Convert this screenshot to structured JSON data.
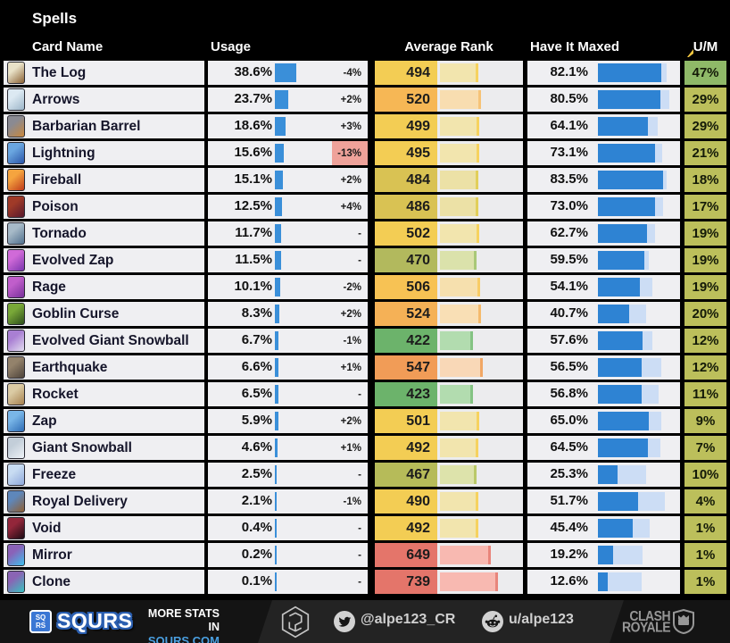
{
  "header": {
    "title": "Spells"
  },
  "chart_data": {
    "type": "table",
    "title": "Spells",
    "columns": [
      "Card Name",
      "Usage",
      "Average Rank",
      "Have It Maxed",
      "U/M"
    ],
    "legend": "Usage bar scale: 100% = 62px; rank bar scale: rank x 0.088px; maxed bars: dark = have-it-maxed %, light = additional have-it %",
    "rows": [
      {
        "name": "The Log",
        "usage_label": "38.6%",
        "usage_pct": 38.6,
        "trend": "-4%",
        "trend_alert": false,
        "rank": 494,
        "rank_colors": [
          "#f3cd54",
          "#f2e5ae",
          "#f6d25f"
        ],
        "maxed_label": "82.1%",
        "maxed_pct": 82.1,
        "have_pct": 89,
        "um_label": "47%",
        "um_color": "#8fb968",
        "icon": [
          "#e9e2c8",
          "#8a6134"
        ]
      },
      {
        "name": "Arrows",
        "usage_label": "23.7%",
        "usage_pct": 23.7,
        "trend": "+2%",
        "trend_alert": false,
        "rank": 520,
        "rank_colors": [
          "#f6b755",
          "#f8ddb0",
          "#f6c377"
        ],
        "maxed_label": "80.5%",
        "maxed_pct": 80.5,
        "have_pct": 92,
        "um_label": "29%",
        "um_color": "#bcbf5b",
        "icon": [
          "#dce9f2",
          "#9db6c9"
        ]
      },
      {
        "name": "Barbarian Barrel",
        "usage_label": "18.6%",
        "usage_pct": 18.6,
        "trend": "+3%",
        "trend_alert": false,
        "rank": 499,
        "rank_colors": [
          "#f3cd54",
          "#f2e5ae",
          "#f6d25f"
        ],
        "maxed_label": "64.1%",
        "maxed_pct": 64.1,
        "have_pct": 77,
        "um_label": "29%",
        "um_color": "#bcbf5b",
        "icon": [
          "#8a8a92",
          "#c9883c"
        ]
      },
      {
        "name": "Lightning",
        "usage_label": "15.6%",
        "usage_pct": 15.6,
        "trend": "-13%",
        "trend_alert": true,
        "rank": 495,
        "rank_colors": [
          "#f3cd54",
          "#f2e5ae",
          "#f6d25f"
        ],
        "maxed_label": "73.1%",
        "maxed_pct": 73.1,
        "have_pct": 83,
        "um_label": "21%",
        "um_color": "#bcbf5b",
        "icon": [
          "#6aa6e0",
          "#2b55a8"
        ]
      },
      {
        "name": "Fireball",
        "usage_label": "15.1%",
        "usage_pct": 15.1,
        "trend": "+2%",
        "trend_alert": false,
        "rank": 484,
        "rank_colors": [
          "#d9c253",
          "#ece1a6",
          "#e2cf5b"
        ],
        "maxed_label": "83.5%",
        "maxed_pct": 83.5,
        "have_pct": 89,
        "um_label": "18%",
        "um_color": "#bcbf5b",
        "icon": [
          "#f5a43f",
          "#bf3a1a"
        ]
      },
      {
        "name": "Poison",
        "usage_label": "12.5%",
        "usage_pct": 12.5,
        "trend": "+4%",
        "trend_alert": false,
        "rank": 486,
        "rank_colors": [
          "#d9c253",
          "#ece1a6",
          "#e2cf5b"
        ],
        "maxed_label": "73.0%",
        "maxed_pct": 73.0,
        "have_pct": 84,
        "um_label": "17%",
        "um_color": "#bcbf5b",
        "icon": [
          "#a03a28",
          "#56182c"
        ]
      },
      {
        "name": "Tornado",
        "usage_label": "11.7%",
        "usage_pct": 11.7,
        "trend": "-",
        "trend_alert": false,
        "rank": 502,
        "rank_colors": [
          "#f3cd54",
          "#f2e5ae",
          "#f6d25f"
        ],
        "maxed_label": "62.7%",
        "maxed_pct": 62.7,
        "have_pct": 73,
        "um_label": "19%",
        "um_color": "#bcbf5b",
        "icon": [
          "#a7bac8",
          "#51708e"
        ]
      },
      {
        "name": "Evolved Zap",
        "usage_label": "11.5%",
        "usage_pct": 11.5,
        "trend": "-",
        "trend_alert": false,
        "rank": 470,
        "rank_colors": [
          "#b2b95d",
          "#dbe2ab",
          "#a9c878"
        ],
        "maxed_label": "59.5%",
        "maxed_pct": 59.5,
        "have_pct": 66,
        "um_label": "19%",
        "um_color": "#bcbf5b",
        "icon": [
          "#d06ad8",
          "#7a35ae"
        ]
      },
      {
        "name": "Rage",
        "usage_label": "10.1%",
        "usage_pct": 10.1,
        "trend": "-2%",
        "trend_alert": false,
        "rank": 506,
        "rank_colors": [
          "#f7c254",
          "#f6e0ae",
          "#f8cc66"
        ],
        "maxed_label": "54.1%",
        "maxed_pct": 54.1,
        "have_pct": 70,
        "um_label": "19%",
        "um_color": "#bcbf5b",
        "icon": [
          "#c05ecb",
          "#77309a"
        ]
      },
      {
        "name": "Goblin Curse",
        "usage_label": "8.3%",
        "usage_pct": 8.3,
        "trend": "+2%",
        "trend_alert": false,
        "rank": 524,
        "rank_colors": [
          "#f5b156",
          "#f9dfb5",
          "#f5ba6c"
        ],
        "maxed_label": "40.7%",
        "maxed_pct": 40.7,
        "have_pct": 62,
        "um_label": "20%",
        "um_color": "#bcbf5b",
        "icon": [
          "#79a838",
          "#2d4d1b"
        ]
      },
      {
        "name": "Evolved Giant Snowball",
        "usage_label": "6.7%",
        "usage_pct": 6.7,
        "trend": "-1%",
        "trend_alert": false,
        "rank": 422,
        "rank_colors": [
          "#6cb36b",
          "#b2dcaf",
          "#84c383"
        ],
        "maxed_label": "57.6%",
        "maxed_pct": 57.6,
        "have_pct": 70,
        "um_label": "12%",
        "um_color": "#bcbf5b",
        "icon": [
          "#a97fd3",
          "#e3ddf0"
        ]
      },
      {
        "name": "Earthquake",
        "usage_label": "6.6%",
        "usage_pct": 6.6,
        "trend": "+1%",
        "trend_alert": false,
        "rank": 547,
        "rank_colors": [
          "#f19c57",
          "#f9d8b7",
          "#f1a765"
        ],
        "maxed_label": "56.5%",
        "maxed_pct": 56.5,
        "have_pct": 82,
        "um_label": "12%",
        "um_color": "#bcbf5b",
        "icon": [
          "#93826b",
          "#4c423a"
        ]
      },
      {
        "name": "Rocket",
        "usage_label": "6.5%",
        "usage_pct": 6.5,
        "trend": "-",
        "trend_alert": false,
        "rank": 423,
        "rank_colors": [
          "#6cb36b",
          "#b2dcaf",
          "#84c383"
        ],
        "maxed_label": "56.8%",
        "maxed_pct": 56.8,
        "have_pct": 78,
        "um_label": "11%",
        "um_color": "#bcbf5b",
        "icon": [
          "#dbcba4",
          "#a5804f"
        ]
      },
      {
        "name": "Zap",
        "usage_label": "5.9%",
        "usage_pct": 5.9,
        "trend": "+2%",
        "trend_alert": false,
        "rank": 501,
        "rank_colors": [
          "#f3cd54",
          "#f2e5ae",
          "#f6d25f"
        ],
        "maxed_label": "65.0%",
        "maxed_pct": 65.0,
        "have_pct": 82,
        "um_label": "9%",
        "um_color": "#bcbf5b",
        "icon": [
          "#79b6e8",
          "#2f6cb4"
        ]
      },
      {
        "name": "Giant Snowball",
        "usage_label": "4.6%",
        "usage_pct": 4.6,
        "trend": "+1%",
        "trend_alert": false,
        "rank": 492,
        "rank_colors": [
          "#f3cd54",
          "#f2e5ae",
          "#f6d25f"
        ],
        "maxed_label": "64.5%",
        "maxed_pct": 64.5,
        "have_pct": 81,
        "um_label": "7%",
        "um_color": "#bcbf5b",
        "icon": [
          "#c3ced9",
          "#eef2f7"
        ]
      },
      {
        "name": "Freeze",
        "usage_label": "2.5%",
        "usage_pct": 2.5,
        "trend": "-",
        "trend_alert": false,
        "rank": 467,
        "rank_colors": [
          "#b6bb59",
          "#dde3ab",
          "#bac969"
        ],
        "maxed_label": "25.3%",
        "maxed_pct": 25.3,
        "have_pct": 62,
        "um_label": "10%",
        "um_color": "#bcbf5b",
        "icon": [
          "#c8dcf2",
          "#8fa8da"
        ]
      },
      {
        "name": "Royal Delivery",
        "usage_label": "2.1%",
        "usage_pct": 2.1,
        "trend": "-1%",
        "trend_alert": false,
        "rank": 490,
        "rank_colors": [
          "#f3cd54",
          "#f2e5ae",
          "#f6d25f"
        ],
        "maxed_label": "51.7%",
        "maxed_pct": 51.7,
        "have_pct": 86,
        "um_label": "4%",
        "um_color": "#bcbf5b",
        "icon": [
          "#5e87bb",
          "#8f5f33"
        ]
      },
      {
        "name": "Void",
        "usage_label": "0.4%",
        "usage_pct": 0.4,
        "trend": "-",
        "trend_alert": false,
        "rank": 492,
        "rank_colors": [
          "#f3cd54",
          "#f2e5ae",
          "#f6d25f"
        ],
        "maxed_label": "45.4%",
        "maxed_pct": 45.4,
        "have_pct": 67,
        "um_label": "1%",
        "um_color": "#bcbf5b",
        "icon": [
          "#93263a",
          "#1c0b14"
        ]
      },
      {
        "name": "Mirror",
        "usage_label": "0.2%",
        "usage_pct": 0.2,
        "trend": "-",
        "trend_alert": false,
        "rank": 649,
        "rank_colors": [
          "#e4756a",
          "#f8b9b1",
          "#e8857b"
        ],
        "maxed_label": "19.2%",
        "maxed_pct": 19.2,
        "have_pct": 58,
        "um_label": "1%",
        "um_color": "#bcbf5b",
        "icon": [
          "#8a62b8",
          "#3ec0ee"
        ]
      },
      {
        "name": "Clone",
        "usage_label": "0.1%",
        "usage_pct": 0.1,
        "trend": "-",
        "trend_alert": false,
        "rank": 739,
        "rank_colors": [
          "#e4756a",
          "#f8b9b1",
          "#e8857b"
        ],
        "maxed_label": "12.6%",
        "maxed_pct": 12.6,
        "have_pct": 56,
        "um_label": "1%",
        "um_color": "#bcbf5b",
        "icon": [
          "#8a64b4",
          "#37c3c0"
        ]
      }
    ]
  },
  "colors": {
    "usage_bar": "#3a8fd9",
    "maxed_bar_dark": "#2e83d3",
    "maxed_bar_light": "#ccddf5",
    "row_bg": "#efeff2",
    "trend_alert_bg": "#efa29a",
    "um_green": "#8fb968",
    "um_olive": "#bcbf5b",
    "footer_accent_blue": "#4a9fe0"
  },
  "footer": {
    "brand_badge_top": "SQ",
    "brand_badge_bottom": "RS",
    "brand_name": "SQURS",
    "tagline_line1": "MORE STATS IN",
    "tagline_line2": "SQURS.COM",
    "twitter_handle": "@alpe123_CR",
    "reddit_handle": "u/alpe123",
    "game_line1": "CLASH",
    "game_line2": "ROYALE"
  }
}
